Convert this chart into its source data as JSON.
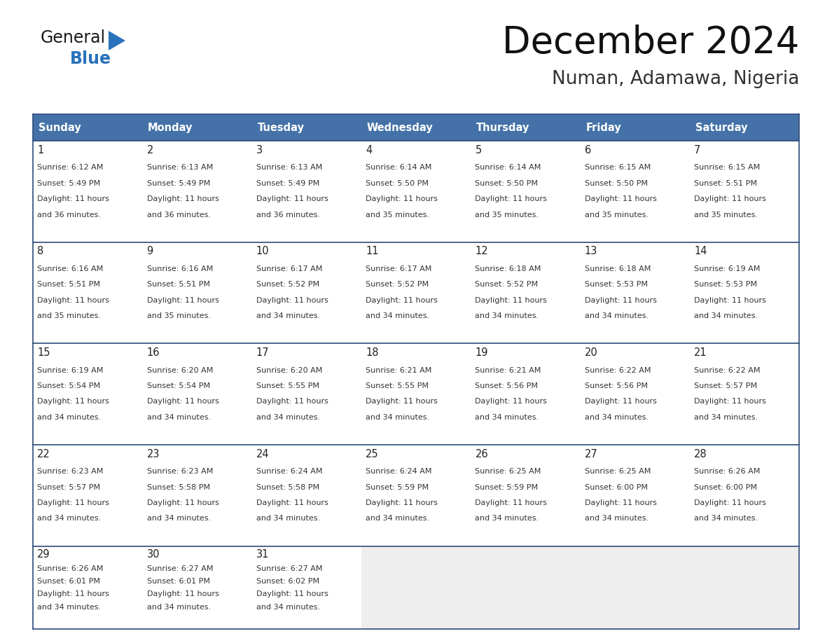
{
  "title": "December 2024",
  "subtitle": "Numan, Adamawa, Nigeria",
  "header_color": "#4472a8",
  "header_text_color": "#ffffff",
  "day_names": [
    "Sunday",
    "Monday",
    "Tuesday",
    "Wednesday",
    "Thursday",
    "Friday",
    "Saturday"
  ],
  "cell_bg_color": "#ffffff",
  "last_row_bg": "#eeeeee",
  "row_border_color": "#2e4a7a",
  "outer_border_color": "#2e4a7a",
  "text_color": "#333333",
  "day_num_color": "#222222",
  "logo_general_color": "#1a1a1a",
  "logo_blue_color": "#2a72bb",
  "days": [
    {
      "date": 1,
      "col": 0,
      "row": 0,
      "sunrise": "6:12 AM",
      "sunset": "5:49 PM",
      "daylight": "11 hours and 36 minutes."
    },
    {
      "date": 2,
      "col": 1,
      "row": 0,
      "sunrise": "6:13 AM",
      "sunset": "5:49 PM",
      "daylight": "11 hours and 36 minutes."
    },
    {
      "date": 3,
      "col": 2,
      "row": 0,
      "sunrise": "6:13 AM",
      "sunset": "5:49 PM",
      "daylight": "11 hours and 36 minutes."
    },
    {
      "date": 4,
      "col": 3,
      "row": 0,
      "sunrise": "6:14 AM",
      "sunset": "5:50 PM",
      "daylight": "11 hours and 35 minutes."
    },
    {
      "date": 5,
      "col": 4,
      "row": 0,
      "sunrise": "6:14 AM",
      "sunset": "5:50 PM",
      "daylight": "11 hours and 35 minutes."
    },
    {
      "date": 6,
      "col": 5,
      "row": 0,
      "sunrise": "6:15 AM",
      "sunset": "5:50 PM",
      "daylight": "11 hours and 35 minutes."
    },
    {
      "date": 7,
      "col": 6,
      "row": 0,
      "sunrise": "6:15 AM",
      "sunset": "5:51 PM",
      "daylight": "11 hours and 35 minutes."
    },
    {
      "date": 8,
      "col": 0,
      "row": 1,
      "sunrise": "6:16 AM",
      "sunset": "5:51 PM",
      "daylight": "11 hours and 35 minutes."
    },
    {
      "date": 9,
      "col": 1,
      "row": 1,
      "sunrise": "6:16 AM",
      "sunset": "5:51 PM",
      "daylight": "11 hours and 35 minutes."
    },
    {
      "date": 10,
      "col": 2,
      "row": 1,
      "sunrise": "6:17 AM",
      "sunset": "5:52 PM",
      "daylight": "11 hours and 34 minutes."
    },
    {
      "date": 11,
      "col": 3,
      "row": 1,
      "sunrise": "6:17 AM",
      "sunset": "5:52 PM",
      "daylight": "11 hours and 34 minutes."
    },
    {
      "date": 12,
      "col": 4,
      "row": 1,
      "sunrise": "6:18 AM",
      "sunset": "5:52 PM",
      "daylight": "11 hours and 34 minutes."
    },
    {
      "date": 13,
      "col": 5,
      "row": 1,
      "sunrise": "6:18 AM",
      "sunset": "5:53 PM",
      "daylight": "11 hours and 34 minutes."
    },
    {
      "date": 14,
      "col": 6,
      "row": 1,
      "sunrise": "6:19 AM",
      "sunset": "5:53 PM",
      "daylight": "11 hours and 34 minutes."
    },
    {
      "date": 15,
      "col": 0,
      "row": 2,
      "sunrise": "6:19 AM",
      "sunset": "5:54 PM",
      "daylight": "11 hours and 34 minutes."
    },
    {
      "date": 16,
      "col": 1,
      "row": 2,
      "sunrise": "6:20 AM",
      "sunset": "5:54 PM",
      "daylight": "11 hours and 34 minutes."
    },
    {
      "date": 17,
      "col": 2,
      "row": 2,
      "sunrise": "6:20 AM",
      "sunset": "5:55 PM",
      "daylight": "11 hours and 34 minutes."
    },
    {
      "date": 18,
      "col": 3,
      "row": 2,
      "sunrise": "6:21 AM",
      "sunset": "5:55 PM",
      "daylight": "11 hours and 34 minutes."
    },
    {
      "date": 19,
      "col": 4,
      "row": 2,
      "sunrise": "6:21 AM",
      "sunset": "5:56 PM",
      "daylight": "11 hours and 34 minutes."
    },
    {
      "date": 20,
      "col": 5,
      "row": 2,
      "sunrise": "6:22 AM",
      "sunset": "5:56 PM",
      "daylight": "11 hours and 34 minutes."
    },
    {
      "date": 21,
      "col": 6,
      "row": 2,
      "sunrise": "6:22 AM",
      "sunset": "5:57 PM",
      "daylight": "11 hours and 34 minutes."
    },
    {
      "date": 22,
      "col": 0,
      "row": 3,
      "sunrise": "6:23 AM",
      "sunset": "5:57 PM",
      "daylight": "11 hours and 34 minutes."
    },
    {
      "date": 23,
      "col": 1,
      "row": 3,
      "sunrise": "6:23 AM",
      "sunset": "5:58 PM",
      "daylight": "11 hours and 34 minutes."
    },
    {
      "date": 24,
      "col": 2,
      "row": 3,
      "sunrise": "6:24 AM",
      "sunset": "5:58 PM",
      "daylight": "11 hours and 34 minutes."
    },
    {
      "date": 25,
      "col": 3,
      "row": 3,
      "sunrise": "6:24 AM",
      "sunset": "5:59 PM",
      "daylight": "11 hours and 34 minutes."
    },
    {
      "date": 26,
      "col": 4,
      "row": 3,
      "sunrise": "6:25 AM",
      "sunset": "5:59 PM",
      "daylight": "11 hours and 34 minutes."
    },
    {
      "date": 27,
      "col": 5,
      "row": 3,
      "sunrise": "6:25 AM",
      "sunset": "6:00 PM",
      "daylight": "11 hours and 34 minutes."
    },
    {
      "date": 28,
      "col": 6,
      "row": 3,
      "sunrise": "6:26 AM",
      "sunset": "6:00 PM",
      "daylight": "11 hours and 34 minutes."
    },
    {
      "date": 29,
      "col": 0,
      "row": 4,
      "sunrise": "6:26 AM",
      "sunset": "6:01 PM",
      "daylight": "11 hours and 34 minutes."
    },
    {
      "date": 30,
      "col": 1,
      "row": 4,
      "sunrise": "6:27 AM",
      "sunset": "6:01 PM",
      "daylight": "11 hours and 34 minutes."
    },
    {
      "date": 31,
      "col": 2,
      "row": 4,
      "sunrise": "6:27 AM",
      "sunset": "6:02 PM",
      "daylight": "11 hours and 34 minutes."
    }
  ]
}
